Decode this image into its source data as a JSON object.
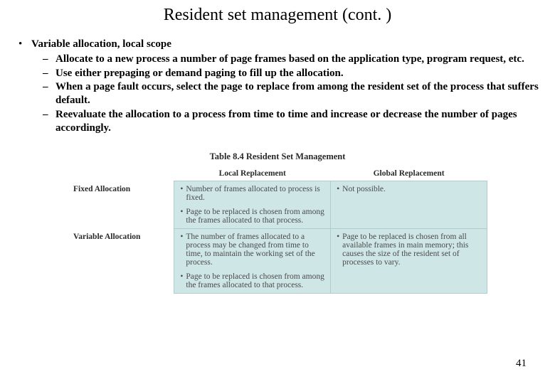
{
  "title": "Resident set management (cont. )",
  "bullet": {
    "lead": "Variable allocation, local scope",
    "items": [
      "Allocate to a new process a number of page frames based on the application type, program request, etc.",
      "Use either prepaging or demand paging to fill up the allocation.",
      "When a page fault occurs, select the page to replace from among the resident set of the process that suffers default.",
      "Reevaluate the allocation to a process from time to time and increase or decrease the number of pages accordingly."
    ]
  },
  "table": {
    "caption": "Table 8.4  Resident Set Management",
    "col_headers": [
      "",
      "Local Replacement",
      "Global Replacement"
    ],
    "rows": [
      {
        "label": "Fixed Allocation",
        "local": [
          "Number of frames allocated to process is fixed.",
          "Page to be replaced is chosen from among the frames allocated to that process."
        ],
        "global": [
          "Not possible."
        ]
      },
      {
        "label": "Variable Allocation",
        "local": [
          "The number of frames allocated to a process may be changed from time to time, to maintain the working set of the process.",
          "Page to be replaced is chosen from among the frames allocated to that process."
        ],
        "global": [
          "Page to be replaced is chosen from all available frames in main memory; this causes the size of the resident set of processes to vary."
        ]
      }
    ],
    "colors": {
      "cell_bg": "#cfe6e6",
      "cell_border": "#b0cccc",
      "cell_text": "#4a4a4a",
      "header_text": "#2a2a2a",
      "page_bg": "#ffffff"
    },
    "fontsize_caption": 12.5,
    "fontsize_body": 11.5
  },
  "page_number": "41"
}
